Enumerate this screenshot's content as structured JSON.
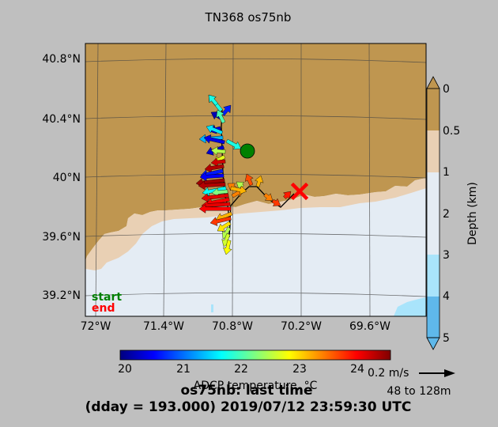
{
  "title": "TN368 os75nb",
  "map": {
    "lat_ticks": [
      "40.8°N",
      "40.4°N",
      "40°N",
      "39.6°N",
      "39.2°N"
    ],
    "lon_ticks": [
      "72°W",
      "71.4°W",
      "70.8°W",
      "70.2°W",
      "69.6°W"
    ],
    "start_label": "start",
    "end_label": "end",
    "start_color": "#008000",
    "end_color": "#ff0000",
    "land_color": "#bf9650",
    "marker_start": "green-circle",
    "marker_end": "red-x"
  },
  "depth_colorbar": {
    "label": "Depth (km)",
    "ticks": [
      "0",
      "0.5",
      "1",
      "2",
      "3",
      "4",
      "5"
    ],
    "colors": [
      "#bf9650",
      "#e9d0b4",
      "#e4ecf4",
      "#a9e4fb",
      "#5fb8ea"
    ]
  },
  "temp_colorbar": {
    "label": "ADCP temperature, °C",
    "ticks": [
      "20",
      "21",
      "22",
      "23",
      "24"
    ],
    "cmap": "jet"
  },
  "scale": {
    "label": "0.2 m/s",
    "depth_range": "48 to 128m"
  },
  "footer": {
    "line1": "os75nb: last time",
    "line2": "(dday = 193.000) 2019/07/12 23:59:30 UTC"
  }
}
